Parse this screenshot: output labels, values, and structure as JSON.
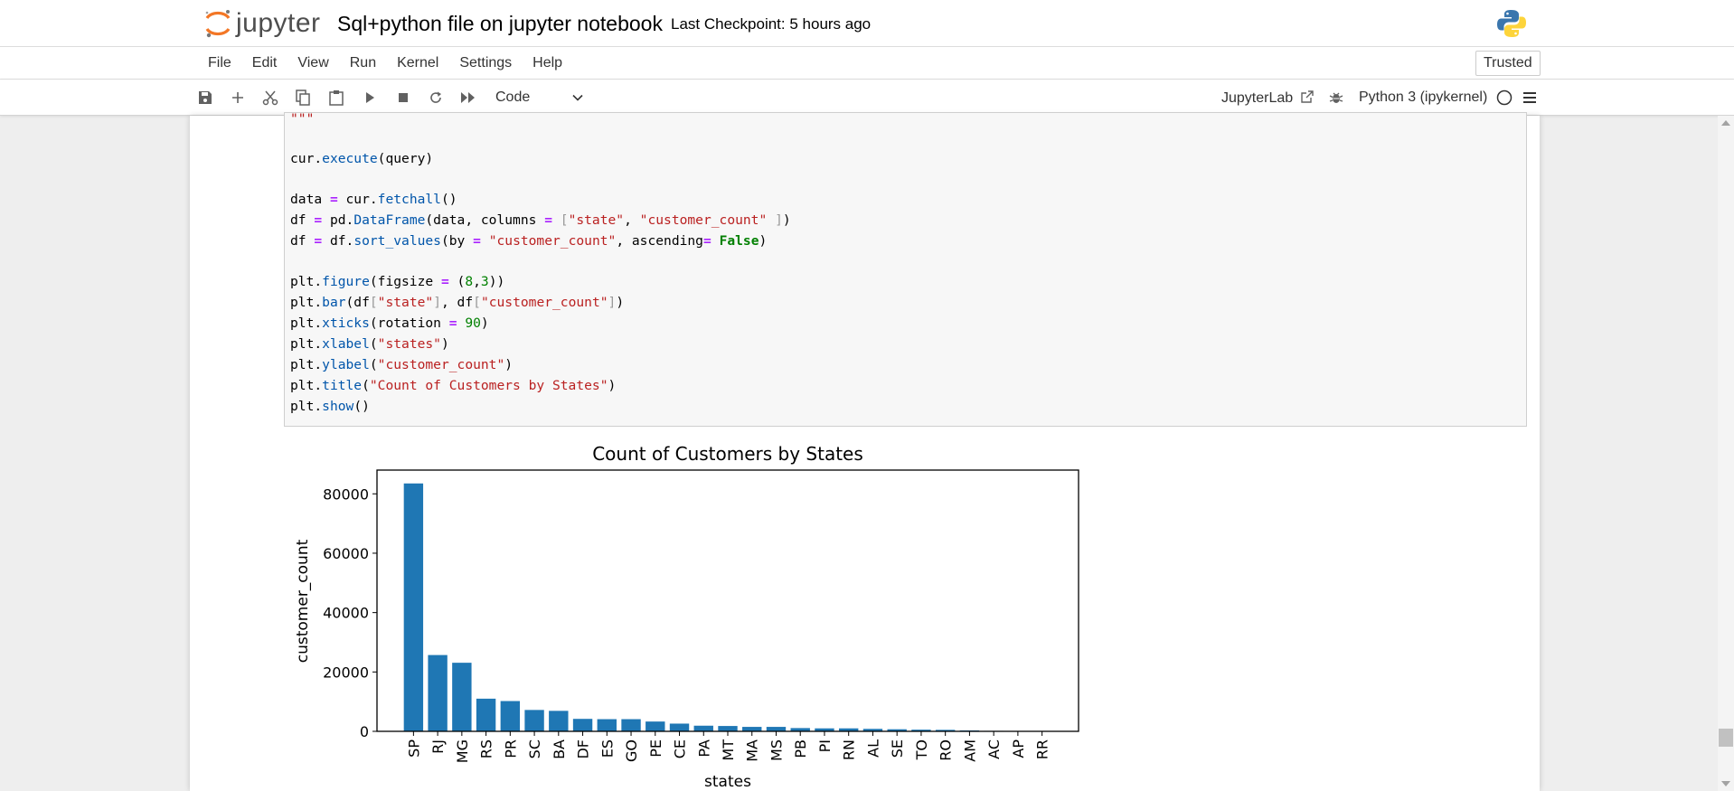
{
  "header": {
    "logo_text": "jupyter",
    "notebook_title": "Sql+python file on jupyter notebook",
    "checkpoint": "Last Checkpoint: 5 hours ago",
    "kernel_logo_icon": "python-logo-icon"
  },
  "menubar": {
    "items": [
      "File",
      "Edit",
      "View",
      "Run",
      "Kernel",
      "Settings",
      "Help"
    ],
    "trusted_label": "Trusted"
  },
  "toolbar": {
    "icons": [
      "save-icon",
      "add-cell-icon",
      "cut-icon",
      "copy-icon",
      "paste-icon",
      "run-icon",
      "stop-icon",
      "restart-icon",
      "fast-forward-icon"
    ],
    "cell_type": "Code",
    "jupyterlab_label": "JupyterLab",
    "kernel_name": "Python 3 (ipykernel)"
  },
  "code_cell": {
    "lines": [
      "\"\"\"",
      "",
      "cur.execute(query)",
      "",
      "data = cur.fetchall()",
      "df = pd.DataFrame(data, columns = [\"state\", \"customer_count\" ])",
      "df = df.sort_values(by = \"customer_count\", ascending= False)",
      "",
      "plt.figure(figsize = (8,3))",
      "plt.bar(df[\"state\"], df[\"customer_count\"])",
      "plt.xticks(rotation = 90)",
      "plt.xlabel(\"states\")",
      "plt.ylabel(\"customer_count\")",
      "plt.title(\"Count of Customers by States\")",
      "plt.show()"
    ]
  },
  "chart_data": {
    "type": "bar",
    "title": "Count of Customers by States",
    "xlabel": "states",
    "ylabel": "customer_count",
    "categories": [
      "SP",
      "RJ",
      "MG",
      "RS",
      "PR",
      "SC",
      "BA",
      "DF",
      "ES",
      "GO",
      "PE",
      "CE",
      "PA",
      "MT",
      "MA",
      "MS",
      "PB",
      "PI",
      "RN",
      "AL",
      "SE",
      "TO",
      "RO",
      "AM",
      "AC",
      "AP",
      "RR"
    ],
    "values": [
      83500,
      25700,
      23100,
      11000,
      10200,
      7200,
      6900,
      4200,
      4100,
      4100,
      3300,
      2600,
      1900,
      1800,
      1500,
      1500,
      1100,
      1000,
      1000,
      830,
      700,
      560,
      500,
      300,
      160,
      150,
      90
    ],
    "yticks": [
      0,
      20000,
      40000,
      60000,
      80000
    ],
    "ylim": [
      0,
      88000
    ],
    "color": "#1f77b4",
    "grid": false
  }
}
